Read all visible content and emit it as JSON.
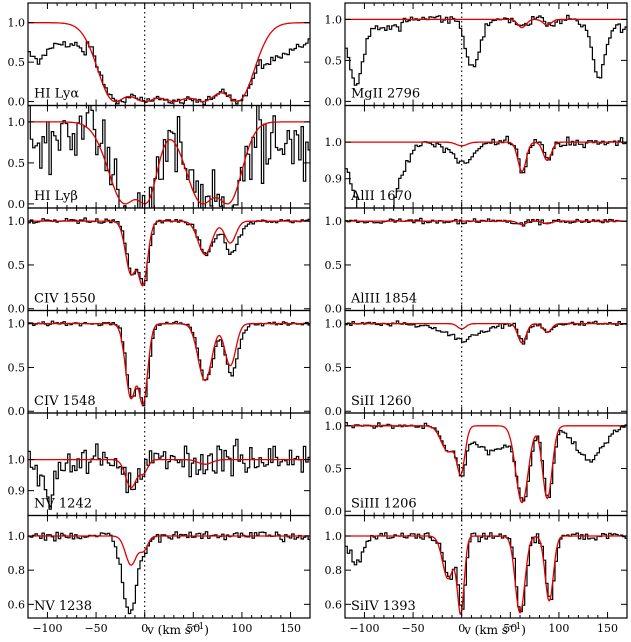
{
  "chart_data": {
    "type": "line",
    "x_label": "v (km s",
    "x_label_exp": "−1",
    "x_label_close": ")",
    "xlim": [
      -120,
      170
    ],
    "x_ticks": [
      -100,
      -50,
      0,
      50,
      100,
      150
    ],
    "x_tick_labels": [
      "−100",
      "−50",
      "0",
      "50",
      "100",
      "150"
    ],
    "line_colors": {
      "data": "#000000",
      "model": "#e00000"
    },
    "panels": [
      {
        "label": "HI  Lyα",
        "ylim": [
          -0.05,
          1.25
        ],
        "yticks": [
          0,
          0.5,
          1
        ],
        "ytick_labels": [
          "0.0",
          "0.5",
          "1.0"
        ],
        "noise": 0.05,
        "baseline": 0.75,
        "model": [
          {
            "v": -30,
            "d": 1.0,
            "b": 24
          },
          {
            "v": 0,
            "d": 1.0,
            "b": 30
          },
          {
            "v": 30,
            "d": 1.0,
            "b": 30
          },
          {
            "v": 60,
            "d": 1.0,
            "b": 30
          },
          {
            "v": 95,
            "d": 1.0,
            "b": 24
          }
        ],
        "extra": [
          {
            "v": 135,
            "d": 0.25,
            "b": 15
          },
          {
            "v": -110,
            "d": 0.3,
            "b": 12
          }
        ]
      },
      {
        "label": "HI  Lyβ",
        "ylim": [
          -0.05,
          1.2
        ],
        "yticks": [
          0,
          0.5,
          1
        ],
        "ytick_labels": [
          "0.0",
          "0.5",
          "1.0"
        ],
        "noise": 0.45,
        "baseline": 0.75,
        "model": [
          {
            "v": -20,
            "d": 1.0,
            "b": 24
          },
          {
            "v": 0,
            "d": 1.0,
            "b": 16
          },
          {
            "v": 60,
            "d": 1.0,
            "b": 24
          },
          {
            "v": 85,
            "d": 1.0,
            "b": 20
          }
        ],
        "extra": []
      },
      {
        "label": "CIV  1550",
        "ylim": [
          -0.02,
          1.15
        ],
        "yticks": [
          0,
          0.5,
          1
        ],
        "ytick_labels": [
          "0.0",
          "0.5",
          "1.0"
        ],
        "noise": 0.025,
        "baseline": 1,
        "model": [
          {
            "v": -14,
            "d": 0.6,
            "b": 8
          },
          {
            "v": -2,
            "d": 0.72,
            "b": 7
          },
          {
            "v": 62,
            "d": 0.38,
            "b": 10
          },
          {
            "v": 88,
            "d": 0.25,
            "b": 8
          }
        ],
        "extra": [
          {
            "v": 88,
            "d": 0.15,
            "b": 14
          }
        ]
      },
      {
        "label": "CIV  1548",
        "ylim": [
          -0.02,
          1.15
        ],
        "yticks": [
          0,
          0.5,
          1
        ],
        "ytick_labels": [
          "0.0",
          "0.5",
          "1.0"
        ],
        "noise": 0.025,
        "baseline": 1,
        "model": [
          {
            "v": -14,
            "d": 0.85,
            "b": 8
          },
          {
            "v": -2,
            "d": 0.92,
            "b": 7
          },
          {
            "v": 62,
            "d": 0.65,
            "b": 10
          },
          {
            "v": 88,
            "d": 0.48,
            "b": 8
          }
        ],
        "extra": [
          {
            "v": 88,
            "d": 0.2,
            "b": 12
          }
        ]
      },
      {
        "label": "NV  1242",
        "ylim": [
          0.82,
          1.15
        ],
        "yticks": [
          0.9,
          1
        ],
        "ytick_labels": [
          "0.9",
          "1.0"
        ],
        "noise": 0.05,
        "baseline": 1,
        "model": [
          {
            "v": -14,
            "d": 0.09,
            "b": 8
          },
          {
            "v": -1,
            "d": 0.04,
            "b": 6
          },
          {
            "v": 62,
            "d": 0.015,
            "b": 10
          }
        ],
        "extra": [
          {
            "v": -100,
            "d": 0.1,
            "b": 12
          }
        ]
      },
      {
        "label": "NV  1238",
        "ylim": [
          0.52,
          1.12
        ],
        "yticks": [
          0.6,
          0.8,
          1
        ],
        "ytick_labels": [
          "0.6",
          "0.8",
          "1.0"
        ],
        "noise": 0.025,
        "baseline": 1,
        "model": [
          {
            "v": -14,
            "d": 0.17,
            "b": 8
          },
          {
            "v": -1,
            "d": 0.08,
            "b": 6
          }
        ],
        "extra": [
          {
            "v": -18,
            "d": 0.35,
            "b": 10
          }
        ]
      },
      {
        "label": "MgII  2796",
        "ylim": [
          -0.05,
          1.2
        ],
        "yticks": [
          0,
          0.5,
          1
        ],
        "ytick_labels": [
          "0.0",
          "0.5",
          "1.0"
        ],
        "noise": 0.05,
        "baseline": 0.9,
        "model": [
          {
            "v": 62,
            "d": 0.1,
            "b": 6
          },
          {
            "v": 88,
            "d": 0.07,
            "b": 6
          }
        ],
        "extra": [
          {
            "v": -110,
            "d": 0.75,
            "b": 10
          },
          {
            "v": 10,
            "d": 0.6,
            "b": 10
          },
          {
            "v": 140,
            "d": 0.7,
            "b": 8
          }
        ]
      },
      {
        "label": "AlII  1670",
        "ylim": [
          0.82,
          1.1
        ],
        "yticks": [
          0.9,
          1
        ],
        "ytick_labels": [
          "0.9",
          "1.0"
        ],
        "noise": 0.012,
        "baseline": 1,
        "model": [
          {
            "v": 0,
            "d": 0.01,
            "b": 8
          },
          {
            "v": 62,
            "d": 0.08,
            "b": 6
          },
          {
            "v": 88,
            "d": 0.05,
            "b": 6
          }
        ],
        "extra": [
          {
            "v": -90,
            "d": 0.3,
            "b": 25
          },
          {
            "v": 0,
            "d": 0.05,
            "b": 18
          }
        ]
      },
      {
        "label": "AlIII  1854",
        "ylim": [
          -0.02,
          1.15
        ],
        "yticks": [
          0,
          0.5,
          1
        ],
        "ytick_labels": [
          "0.0",
          "0.5",
          "1.0"
        ],
        "noise": 0.03,
        "baseline": 1,
        "model": [
          {
            "v": 62,
            "d": 0.04,
            "b": 6
          },
          {
            "v": 88,
            "d": 0.03,
            "b": 6
          }
        ],
        "extra": []
      },
      {
        "label": "SiII  1260",
        "ylim": [
          -0.02,
          1.15
        ],
        "yticks": [
          0,
          0.5,
          1
        ],
        "ytick_labels": [
          "0.0",
          "0.5",
          "1.0"
        ],
        "noise": 0.025,
        "baseline": 1,
        "model": [
          {
            "v": 0,
            "d": 0.06,
            "b": 6
          },
          {
            "v": 62,
            "d": 0.22,
            "b": 6
          },
          {
            "v": 88,
            "d": 0.1,
            "b": 6
          }
        ],
        "extra": [
          {
            "v": 0,
            "d": 0.15,
            "b": 30
          }
        ]
      },
      {
        "label": "SiIII  1206",
        "ylim": [
          -0.05,
          1.15
        ],
        "yticks": [
          0,
          0.5,
          1
        ],
        "ytick_labels": [
          "0.0",
          "0.5",
          "1.0"
        ],
        "noise": 0.03,
        "baseline": 1,
        "model": [
          {
            "v": -14,
            "d": 0.3,
            "b": 10
          },
          {
            "v": -1,
            "d": 0.55,
            "b": 6
          },
          {
            "v": 62,
            "d": 0.9,
            "b": 9
          },
          {
            "v": 88,
            "d": 0.85,
            "b": 7
          }
        ],
        "extra": [
          {
            "v": 30,
            "d": 0.3,
            "b": 25
          },
          {
            "v": 130,
            "d": 0.4,
            "b": 20
          }
        ]
      },
      {
        "label": "SiIV  1393",
        "ylim": [
          0.52,
          1.12
        ],
        "yticks": [
          0.6,
          0.8,
          1
        ],
        "ytick_labels": [
          "0.6",
          "0.8",
          "1.0"
        ],
        "noise": 0.025,
        "baseline": 1,
        "model": [
          {
            "v": -14,
            "d": 0.25,
            "b": 8
          },
          {
            "v": -1,
            "d": 0.45,
            "b": 5
          },
          {
            "v": 60,
            "d": 0.45,
            "b": 7
          },
          {
            "v": 90,
            "d": 0.38,
            "b": 6
          }
        ],
        "extra": [
          {
            "v": -110,
            "d": 0.15,
            "b": 10
          }
        ]
      }
    ]
  }
}
